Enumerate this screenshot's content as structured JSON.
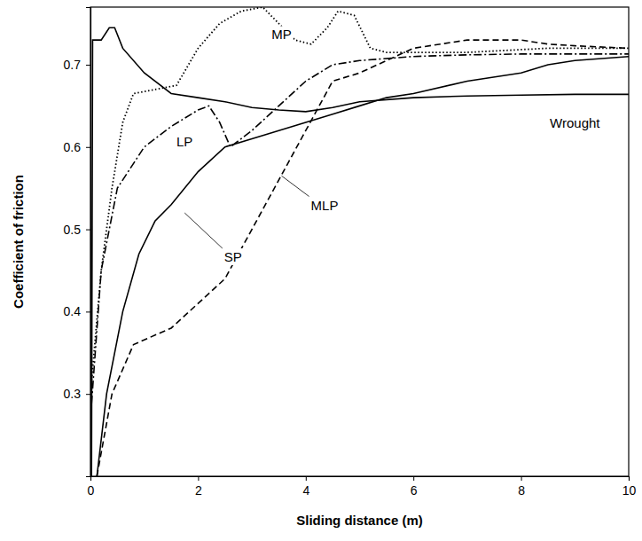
{
  "chart_data": {
    "type": "line",
    "x_label": "Sliding distance (m)",
    "y_label": "Coefficient of friction",
    "xlim": [
      0,
      10
    ],
    "ylim": [
      0.2,
      0.77
    ],
    "xticks": [
      0,
      2,
      4,
      6,
      8,
      10
    ],
    "yticks": [
      0.3,
      0.4,
      0.5,
      0.6,
      0.7
    ],
    "grid": false,
    "series": [
      {
        "name": "Wrought",
        "color": "#000000",
        "line_style": "solid",
        "x": [
          0.02,
          0.04,
          0.2,
          0.35,
          0.45,
          0.6,
          1.0,
          1.5,
          2.0,
          2.5,
          3.0,
          3.5,
          4.0,
          4.5,
          5.0,
          6.0,
          7.0,
          8.0,
          9.0,
          10.0
        ],
        "values": [
          0.2,
          0.73,
          0.73,
          0.745,
          0.745,
          0.72,
          0.69,
          0.665,
          0.66,
          0.655,
          0.648,
          0.645,
          0.643,
          0.648,
          0.655,
          0.66,
          0.662,
          0.663,
          0.664,
          0.664
        ]
      },
      {
        "name": "SP",
        "color": "#000000",
        "line_style": "solid",
        "x": [
          0.12,
          0.3,
          0.6,
          0.9,
          1.2,
          1.5,
          2.0,
          2.5,
          3.0,
          3.5,
          4.0,
          4.5,
          5.0,
          5.5,
          6.0,
          7.0,
          8.0,
          8.5,
          9.0,
          10.0
        ],
        "values": [
          0.2,
          0.3,
          0.4,
          0.47,
          0.51,
          0.53,
          0.57,
          0.6,
          0.61,
          0.62,
          0.63,
          0.64,
          0.65,
          0.66,
          0.665,
          0.68,
          0.69,
          0.7,
          0.705,
          0.71
        ]
      },
      {
        "name": "MP",
        "color": "#000000",
        "line_style": "dotted",
        "x": [
          0.0,
          0.2,
          0.4,
          0.6,
          0.8,
          1.2,
          1.6,
          2.0,
          2.4,
          2.8,
          3.2,
          3.5,
          3.8,
          4.1,
          4.4,
          4.6,
          4.9,
          5.2,
          5.5,
          7.0,
          8.5,
          10.0
        ],
        "values": [
          0.3,
          0.45,
          0.55,
          0.63,
          0.665,
          0.67,
          0.675,
          0.72,
          0.75,
          0.765,
          0.77,
          0.75,
          0.73,
          0.725,
          0.745,
          0.765,
          0.76,
          0.72,
          0.715,
          0.715,
          0.72,
          0.72
        ]
      },
      {
        "name": "LP",
        "color": "#000000",
        "line_style": "dashdot",
        "x": [
          0.0,
          0.2,
          0.5,
          1.0,
          1.5,
          2.0,
          2.2,
          2.4,
          2.6,
          3.0,
          3.5,
          4.0,
          4.5,
          5.0,
          6.0,
          7.0,
          8.0,
          9.0,
          10.0
        ],
        "values": [
          0.27,
          0.45,
          0.55,
          0.6,
          0.625,
          0.645,
          0.65,
          0.63,
          0.6,
          0.62,
          0.65,
          0.68,
          0.7,
          0.705,
          0.71,
          0.712,
          0.713,
          0.713,
          0.713
        ]
      },
      {
        "name": "MLP",
        "color": "#000000",
        "line_style": "dashed",
        "x": [
          0.12,
          0.4,
          0.8,
          1.5,
          2.0,
          2.5,
          3.0,
          3.5,
          4.0,
          4.5,
          5.0,
          6.0,
          7.0,
          8.0,
          8.5,
          9.0,
          10.0
        ],
        "values": [
          0.2,
          0.3,
          0.36,
          0.38,
          0.41,
          0.44,
          0.5,
          0.56,
          0.62,
          0.68,
          0.69,
          0.72,
          0.73,
          0.73,
          0.725,
          0.723,
          0.72
        ]
      }
    ]
  }
}
